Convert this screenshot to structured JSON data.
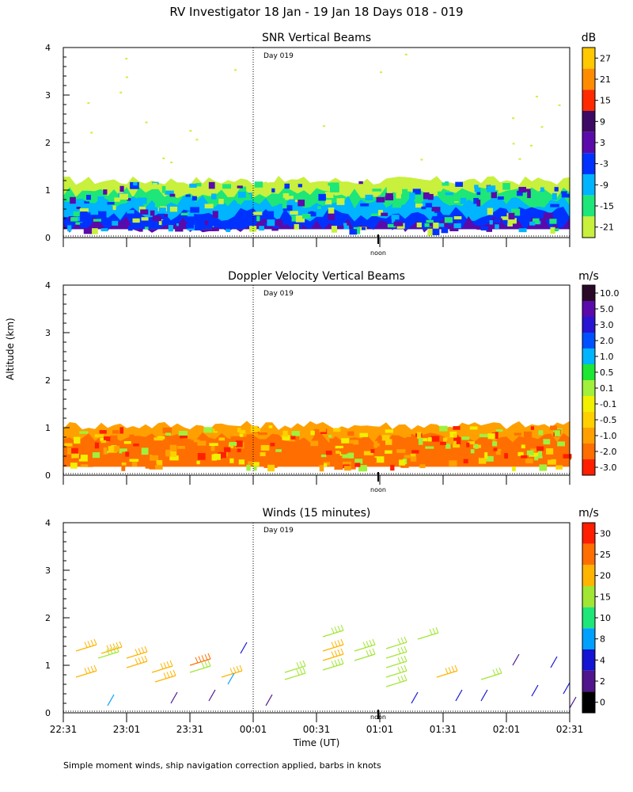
{
  "header": {
    "title": "RV Investigator  18 Jan - 19 Jan 18 Days 018 - 019"
  },
  "axis": {
    "ylabel": "Altitude (km)",
    "xlabel": "Time (UT)",
    "yticks": [
      "0",
      "1",
      "2",
      "3",
      "4"
    ],
    "xticks": [
      "22:31",
      "23:01",
      "23:31",
      "00:01",
      "00:31",
      "01:01",
      "01:31",
      "02:01",
      "02:31"
    ],
    "day_marker_label": "Day 019",
    "noon_label": "noon"
  },
  "footnote": "Simple moment winds, ship navigation correction applied, barbs in knots",
  "chart_data": [
    {
      "type": "heatmap",
      "id": "snr",
      "title": "SNR Vertical Beams",
      "unit": "dB",
      "ylim": [
        0,
        4
      ],
      "colorbar_labels": [
        "27",
        "21",
        "15",
        "9",
        "3",
        "-3",
        "-9",
        "-15",
        "-21"
      ],
      "colorbar_colors": [
        "#ffc800",
        "#ff8c00",
        "#ff2a00",
        "#3c0a64",
        "#5a0aaa",
        "#0032ff",
        "#00b4ff",
        "#1ee678",
        "#c8f03c"
      ],
      "layers": [
        {
          "label": "-21",
          "top_km": 1.2,
          "color": "#c8f03c"
        },
        {
          "label": "-15",
          "top_km": 0.95,
          "color": "#1ee678"
        },
        {
          "label": "-9",
          "top_km": 0.75,
          "color": "#00b4ff"
        },
        {
          "label": "-3",
          "top_km": 0.5,
          "color": "#0032ff"
        },
        {
          "label": "3",
          "top_km": 0.28,
          "color": "#5a0aaa"
        }
      ]
    },
    {
      "type": "heatmap",
      "id": "doppler",
      "title": "Doppler Velocity Vertical Beams",
      "unit": "m/s",
      "ylim": [
        0,
        4
      ],
      "colorbar_labels": [
        "10.0",
        "5.0",
        "3.0",
        "2.0",
        "1.0",
        "0.5",
        "0.1",
        "-0.1",
        "-0.5",
        "-1.0",
        "-2.0",
        "-3.0"
      ],
      "colorbar_colors": [
        "#280a28",
        "#5a0aaa",
        "#2814d2",
        "#0050ff",
        "#00b4ff",
        "#1ee632",
        "#a0f03c",
        "#f0f000",
        "#ffd000",
        "#ffa000",
        "#ff6e00",
        "#ff1e00"
      ],
      "layers": [
        {
          "label": "-1.0",
          "top_km": 1.05,
          "color": "#ffa000"
        },
        {
          "label": "-2.0",
          "top_km": 0.8,
          "color": "#ff6e00"
        }
      ]
    },
    {
      "type": "scatter",
      "id": "winds",
      "title": "Winds (15 minutes)",
      "unit": "m/s",
      "ylim": [
        0,
        4
      ],
      "colorbar_labels": [
        "30",
        "25",
        "20",
        "15",
        "10",
        "8",
        "4",
        "2",
        "0"
      ],
      "colorbar_colors": [
        "#ff1e00",
        "#ff6e00",
        "#ffb400",
        "#a0e632",
        "#1ee678",
        "#00a0ff",
        "#1414d2",
        "#50148c",
        "#000000"
      ],
      "barbs": [
        {
          "t": 0.2,
          "alt": 1.3,
          "speed": 21
        },
        {
          "t": 0.2,
          "alt": 0.75,
          "speed": 22
        },
        {
          "t": 0.55,
          "alt": 1.15,
          "speed": 18
        },
        {
          "t": 0.6,
          "alt": 1.25,
          "speed": 24
        },
        {
          "t": 1.0,
          "alt": 1.15,
          "speed": 20
        },
        {
          "t": 1.0,
          "alt": 0.95,
          "speed": 21
        },
        {
          "t": 1.4,
          "alt": 0.85,
          "speed": 21
        },
        {
          "t": 1.45,
          "alt": 0.65,
          "speed": 20
        },
        {
          "t": 2.0,
          "alt": 0.85,
          "speed": 16
        },
        {
          "t": 2.0,
          "alt": 1.0,
          "speed": 26
        },
        {
          "t": 2.5,
          "alt": 0.75,
          "speed": 22
        },
        {
          "t": 2.6,
          "alt": 0.6,
          "speed": 9
        },
        {
          "t": 2.8,
          "alt": 1.25,
          "speed": 4
        },
        {
          "t": 3.5,
          "alt": 0.85,
          "speed": 17
        },
        {
          "t": 3.5,
          "alt": 0.7,
          "speed": 16
        },
        {
          "t": 4.1,
          "alt": 1.6,
          "speed": 18
        },
        {
          "t": 4.1,
          "alt": 1.3,
          "speed": 20
        },
        {
          "t": 4.1,
          "alt": 1.1,
          "speed": 22
        },
        {
          "t": 4.1,
          "alt": 0.9,
          "speed": 18
        },
        {
          "t": 4.6,
          "alt": 1.3,
          "speed": 18
        },
        {
          "t": 4.6,
          "alt": 1.1,
          "speed": 17
        },
        {
          "t": 5.1,
          "alt": 1.35,
          "speed": 17
        },
        {
          "t": 5.1,
          "alt": 1.15,
          "speed": 17
        },
        {
          "t": 5.1,
          "alt": 0.95,
          "speed": 16
        },
        {
          "t": 5.1,
          "alt": 0.75,
          "speed": 16
        },
        {
          "t": 5.1,
          "alt": 0.55,
          "speed": 16
        },
        {
          "t": 5.6,
          "alt": 1.55,
          "speed": 17
        },
        {
          "t": 5.9,
          "alt": 0.75,
          "speed": 21
        },
        {
          "t": 6.6,
          "alt": 0.7,
          "speed": 16
        },
        {
          "t": 7.1,
          "alt": 1.0,
          "speed": 3
        },
        {
          "t": 7.7,
          "alt": 0.95,
          "speed": 4
        },
        {
          "t": 7.4,
          "alt": 0.35,
          "speed": 4
        },
        {
          "t": 7.9,
          "alt": 0.4,
          "speed": 4
        },
        {
          "t": 0.7,
          "alt": 0.15,
          "speed": 9
        },
        {
          "t": 1.7,
          "alt": 0.2,
          "speed": 3
        },
        {
          "t": 2.3,
          "alt": 0.25,
          "speed": 3
        },
        {
          "t": 3.2,
          "alt": 0.15,
          "speed": 3
        },
        {
          "t": 5.5,
          "alt": 0.2,
          "speed": 4
        },
        {
          "t": 6.2,
          "alt": 0.25,
          "speed": 4
        },
        {
          "t": 6.6,
          "alt": 0.25,
          "speed": 4
        },
        {
          "t": 8.0,
          "alt": 0.1,
          "speed": 3
        }
      ]
    }
  ]
}
